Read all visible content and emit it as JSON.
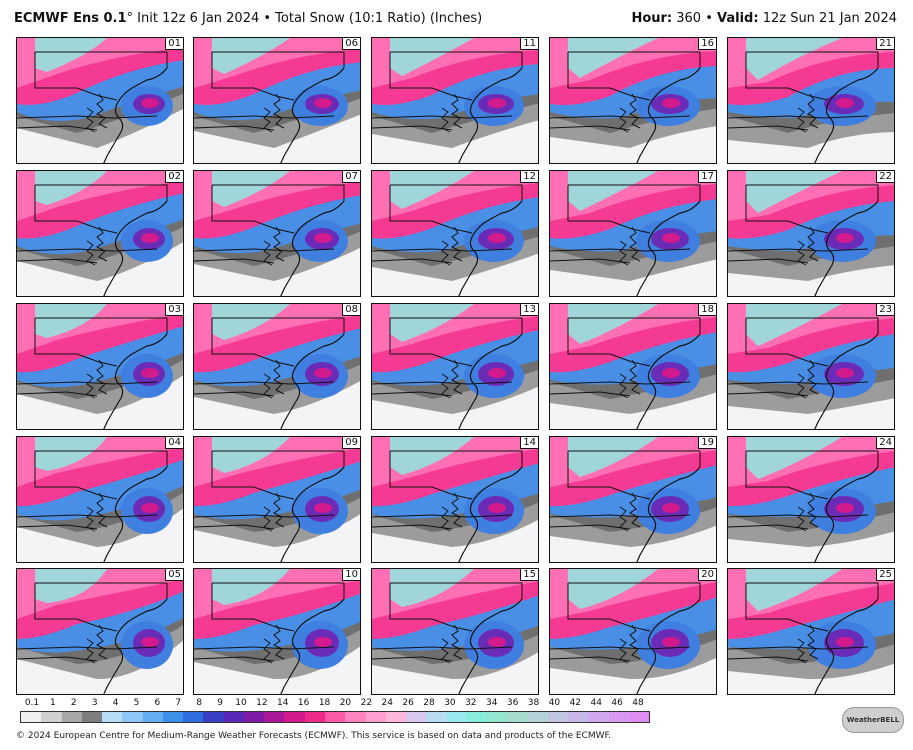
{
  "header": {
    "model": "ECMWF Ens 0.1",
    "degree": "°",
    "init": " Init 12z 6 Jan 2024 • Total Snow (10:1 Ratio) (Inches)",
    "hour_label": "Hour:",
    "hour_value": " 360 • ",
    "valid_label": "Valid:",
    "valid_value": " 12z Sun 21 Jan 2024"
  },
  "members": [
    "01",
    "06",
    "11",
    "16",
    "21",
    "02",
    "07",
    "12",
    "17",
    "22",
    "03",
    "08",
    "13",
    "18",
    "23",
    "04",
    "09",
    "14",
    "19",
    "24",
    "05",
    "10",
    "15",
    "20",
    "25"
  ],
  "colorbar": {
    "ticks": [
      "0.1",
      "1",
      "2",
      "3",
      "4",
      "5",
      "6",
      "7",
      "8",
      "9",
      "10",
      "12",
      "14",
      "16",
      "18",
      "20",
      "22",
      "24",
      "26",
      "28",
      "30",
      "32",
      "34",
      "36",
      "38",
      "40",
      "42",
      "44",
      "46",
      "48"
    ],
    "colors": [
      "#f0f0f0",
      "#d0d0d0",
      "#a8a8a8",
      "#7e7e7e",
      "#b6dcf8",
      "#8ec7f6",
      "#62aef0",
      "#3d8fe8",
      "#2f6ee0",
      "#3b3fc8",
      "#5a28b8",
      "#7e1aa8",
      "#a81898",
      "#d21a8c",
      "#f02a88",
      "#ff5aa8",
      "#ff84c0",
      "#ff9fd0",
      "#ffb8dc",
      "#d8c8f0",
      "#b8dcf4",
      "#9ae8f0",
      "#88eedc",
      "#94e6d0",
      "#a6dcd0",
      "#b4d2d8",
      "#c0c6e0",
      "#c8b8e8",
      "#d0a8ec",
      "#d89af0",
      "#e08cf2"
    ]
  },
  "footer": "© 2024 European Centre for Medium-Range Weather Forecasts (ECMWF). This service is based on data and products of the ECMWF.",
  "logo": "WeatherBELL"
}
